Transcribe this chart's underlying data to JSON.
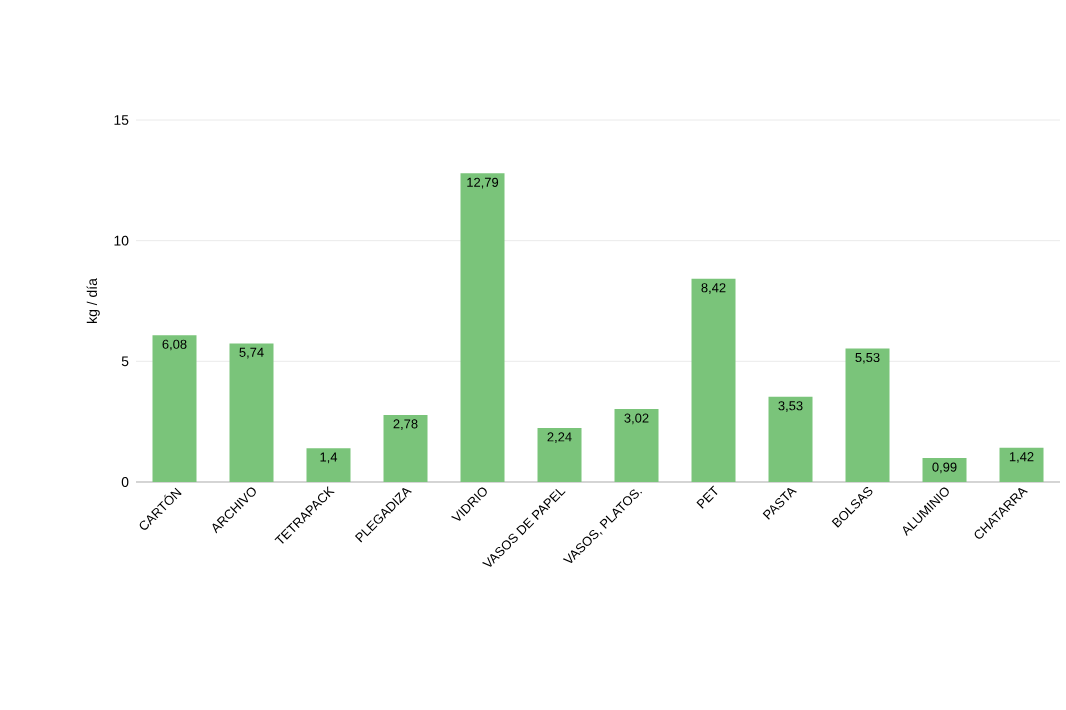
{
  "chart_data": {
    "type": "bar",
    "ylabel": "kg / día",
    "categories": [
      "CARTÓN",
      "ARCHIVO",
      "TETRAPACK",
      "PLEGADIZA",
      "VIDRIO",
      "VASOS DE PAPEL",
      "VASOS, PLATOS.",
      "PET",
      "PASTA",
      "BOLSAS",
      "ALUMINIO",
      "CHATARRA"
    ],
    "values": [
      6.08,
      5.74,
      1.4,
      2.78,
      12.79,
      2.24,
      3.02,
      8.42,
      3.53,
      5.53,
      0.99,
      1.42
    ],
    "value_labels": [
      "6,08",
      "5,74",
      "1,4",
      "2,78",
      "12,79",
      "2,24",
      "3,02",
      "8,42",
      "3,53",
      "5,53",
      "0,99",
      "1,42"
    ],
    "color": "#7ac47a",
    "ylim": [
      0,
      15
    ],
    "yticks": [
      0,
      5,
      10,
      15
    ],
    "grid": "y"
  }
}
